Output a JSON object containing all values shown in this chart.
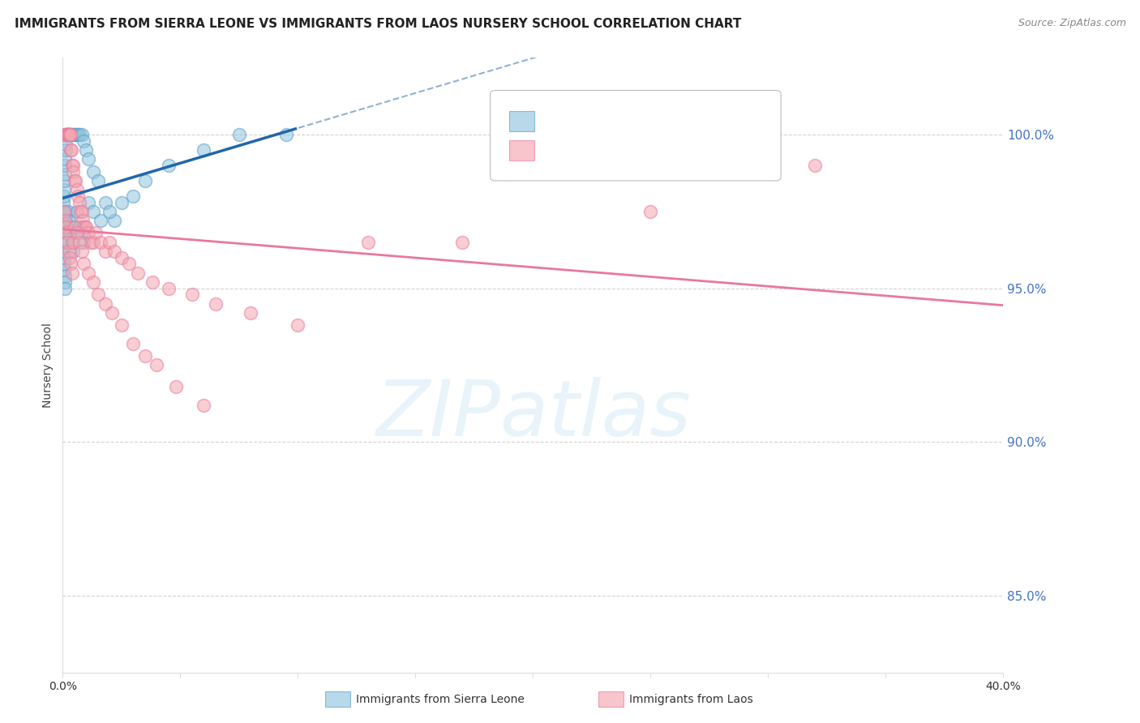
{
  "title": "IMMIGRANTS FROM SIERRA LEONE VS IMMIGRANTS FROM LAOS NURSERY SCHOOL CORRELATION CHART",
  "source": "Source: ZipAtlas.com",
  "ylabel": "Nursery School",
  "yticks": [
    85.0,
    90.0,
    95.0,
    100.0
  ],
  "ytick_labels": [
    "85.0%",
    "90.0%",
    "95.0%",
    "100.0%"
  ],
  "xlim": [
    0.0,
    40.0
  ],
  "ylim": [
    82.5,
    102.5
  ],
  "sierra_leone_color": "#92c5de",
  "laos_color": "#f4a6b0",
  "sierra_leone_edge_color": "#5b9ec9",
  "laos_edge_color": "#e87ca0",
  "sierra_leone_line_color": "#2166ac",
  "laos_line_color": "#e8799c",
  "legend_label1": "Immigrants from Sierra Leone",
  "legend_label2": "Immigrants from Laos",
  "watermark": "ZIPatlas",
  "background_color": "#ffffff",
  "grid_color": "#c8c8c8",
  "sierra_leone_x": [
    0.02,
    0.03,
    0.04,
    0.05,
    0.06,
    0.07,
    0.08,
    0.09,
    0.1,
    0.12,
    0.13,
    0.15,
    0.17,
    0.2,
    0.22,
    0.25,
    0.28,
    0.3,
    0.35,
    0.4,
    0.45,
    0.5,
    0.55,
    0.6,
    0.65,
    0.7,
    0.8,
    0.9,
    1.0,
    1.1,
    1.3,
    1.5,
    1.8,
    2.2,
    0.02,
    0.03,
    0.04,
    0.05,
    0.06,
    0.07,
    0.08,
    0.09,
    0.1,
    0.12,
    0.14,
    0.16,
    0.18,
    0.2,
    0.22,
    0.25,
    0.3,
    0.35,
    0.4,
    0.45,
    0.5,
    0.6,
    0.7,
    0.8,
    0.9,
    1.1,
    1.3,
    1.6,
    2.0,
    2.5,
    3.0,
    3.5,
    4.5,
    6.0,
    7.5,
    9.5
  ],
  "sierra_leone_y": [
    97.2,
    97.5,
    97.8,
    98.0,
    98.2,
    98.5,
    98.7,
    99.0,
    99.2,
    99.5,
    99.7,
    100.0,
    100.0,
    100.0,
    100.0,
    100.0,
    100.0,
    100.0,
    100.0,
    100.0,
    100.0,
    100.0,
    100.0,
    100.0,
    100.0,
    100.0,
    100.0,
    99.8,
    99.5,
    99.2,
    98.8,
    98.5,
    97.8,
    97.2,
    96.8,
    96.5,
    96.2,
    96.0,
    95.8,
    95.6,
    95.4,
    95.2,
    95.0,
    97.5,
    97.2,
    97.0,
    96.8,
    96.5,
    97.5,
    97.2,
    96.8,
    97.0,
    96.5,
    96.2,
    97.0,
    97.5,
    97.0,
    96.8,
    96.5,
    97.8,
    97.5,
    97.2,
    97.5,
    97.8,
    98.0,
    98.5,
    99.0,
    99.5,
    100.0,
    100.0
  ],
  "laos_x": [
    0.05,
    0.1,
    0.15,
    0.18,
    0.2,
    0.22,
    0.25,
    0.28,
    0.3,
    0.32,
    0.35,
    0.38,
    0.4,
    0.42,
    0.45,
    0.5,
    0.55,
    0.6,
    0.65,
    0.7,
    0.75,
    0.8,
    0.85,
    0.9,
    0.95,
    1.0,
    1.1,
    1.2,
    1.3,
    1.4,
    1.6,
    1.8,
    2.0,
    2.2,
    2.5,
    2.8,
    3.2,
    3.8,
    4.5,
    5.5,
    6.5,
    8.0,
    10.0,
    13.0,
    17.0,
    25.0,
    32.0,
    0.05,
    0.08,
    0.12,
    0.16,
    0.2,
    0.25,
    0.3,
    0.35,
    0.4,
    0.45,
    0.5,
    0.6,
    0.7,
    0.8,
    0.9,
    1.1,
    1.3,
    1.5,
    1.8,
    2.1,
    2.5,
    3.0,
    3.5,
    4.0,
    4.8,
    6.0
  ],
  "laos_y": [
    100.0,
    100.0,
    100.0,
    100.0,
    100.0,
    100.0,
    100.0,
    100.0,
    100.0,
    100.0,
    99.5,
    99.5,
    99.0,
    99.0,
    98.8,
    98.5,
    98.5,
    98.2,
    98.0,
    97.8,
    97.5,
    97.5,
    97.2,
    97.0,
    97.0,
    97.0,
    96.8,
    96.5,
    96.5,
    96.8,
    96.5,
    96.2,
    96.5,
    96.2,
    96.0,
    95.8,
    95.5,
    95.2,
    95.0,
    94.8,
    94.5,
    94.2,
    93.8,
    96.5,
    96.5,
    97.5,
    99.0,
    97.5,
    97.2,
    97.0,
    96.8,
    96.5,
    96.2,
    96.0,
    95.8,
    95.5,
    96.5,
    97.0,
    96.8,
    96.5,
    96.2,
    95.8,
    95.5,
    95.2,
    94.8,
    94.5,
    94.2,
    93.8,
    93.2,
    92.8,
    92.5,
    91.8,
    91.2
  ]
}
